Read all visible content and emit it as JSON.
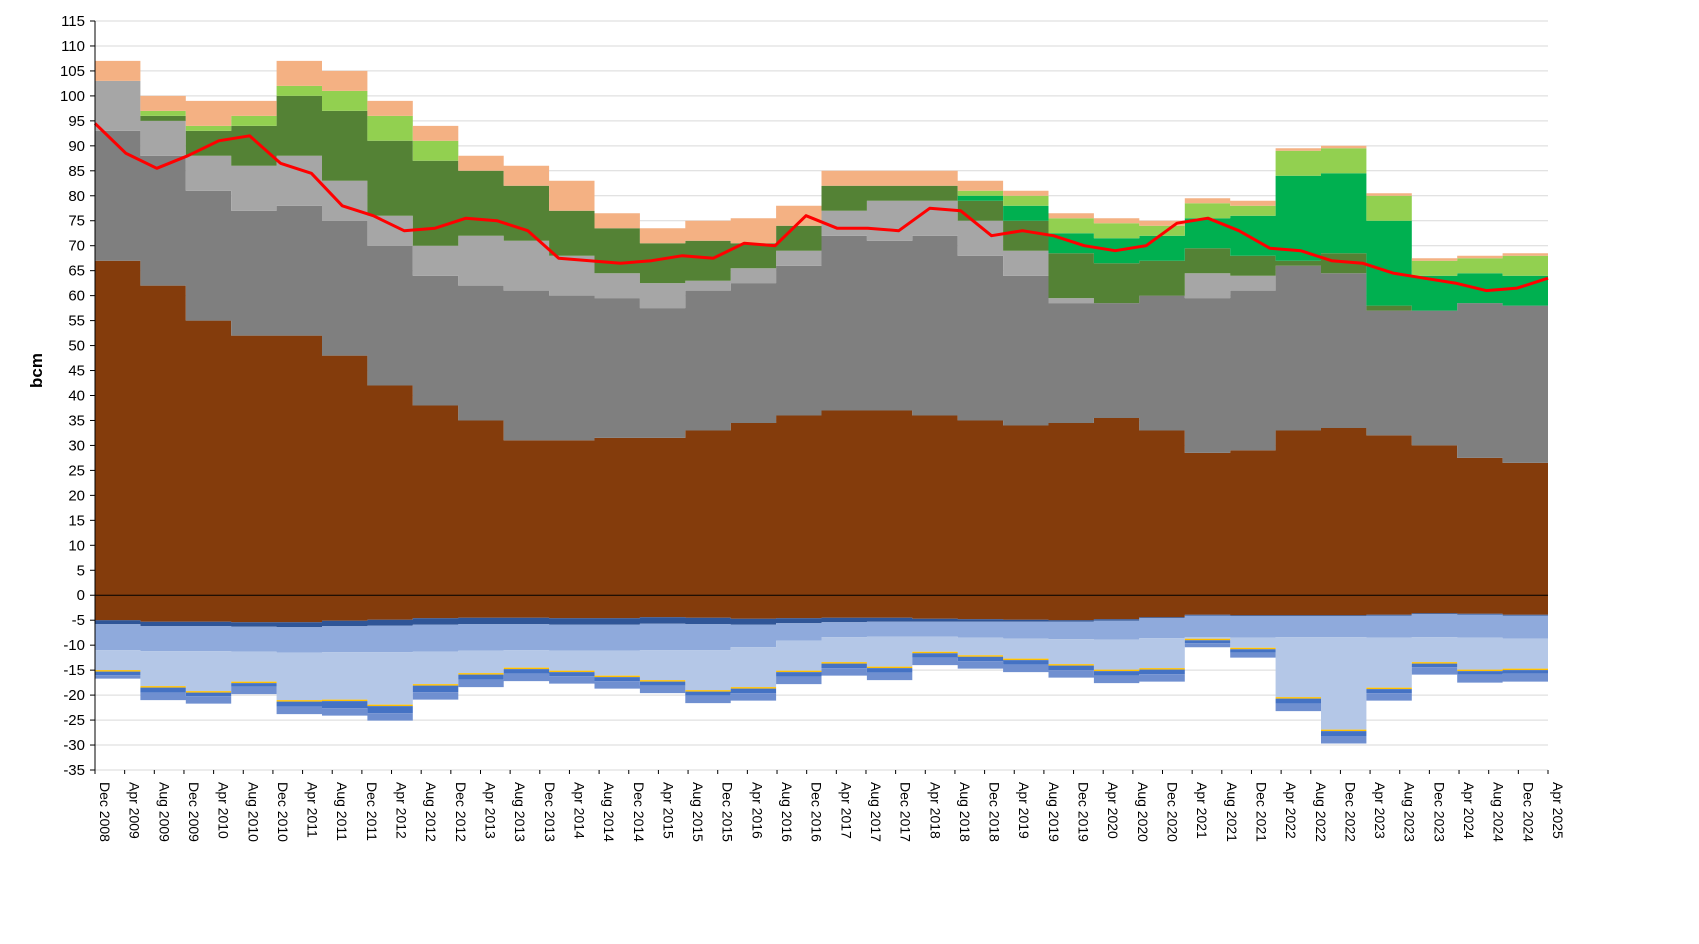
{
  "chart_data": {
    "type": "area",
    "stacked": true,
    "ylabel": "bcm",
    "xlabel": "",
    "ylim": [
      -35,
      115
    ],
    "y_ticks": [
      115,
      110,
      105,
      100,
      95,
      90,
      85,
      80,
      75,
      70,
      65,
      60,
      55,
      50,
      45,
      40,
      35,
      30,
      25,
      20,
      15,
      10,
      5,
      0,
      -5,
      -10,
      -15,
      -20,
      -25,
      -30,
      -35
    ],
    "x_ticks": [
      "Dec 2008",
      "Apr 2009",
      "Aug 2009",
      "Dec 2009",
      "Apr 2010",
      "Aug 2010",
      "Dec 2010",
      "Apr 2011",
      "Aug 2011",
      "Dec 2011",
      "Apr 2012",
      "Aug 2012",
      "Dec 2012",
      "Apr 2013",
      "Aug 2013",
      "Dec 2013",
      "Apr 2014",
      "Aug 2014",
      "Dec 2014",
      "Apr 2015",
      "Aug 2015",
      "Dec 2015",
      "Apr 2016",
      "Aug 2016",
      "Dec 2016",
      "Apr 2017",
      "Aug 2017",
      "Dec 2017",
      "Apr 2018",
      "Aug 2018",
      "Dec 2018",
      "Apr 2019",
      "Aug 2019",
      "Dec 2019",
      "Apr 2020",
      "Aug 2020",
      "Dec 2020",
      "Apr 2021",
      "Aug 2021",
      "Dec 2021",
      "Apr 2022",
      "Aug 2022",
      "Dec 2022",
      "Apr 2023",
      "Aug 2023",
      "Dec 2023",
      "Apr 2024",
      "Aug 2024",
      "Dec 2024",
      "Apr 2025"
    ],
    "grid": true,
    "legend": "none",
    "positive_series": [
      {
        "color": "#843C0C",
        "values": [
          67,
          62,
          55,
          52,
          52,
          48,
          42,
          38,
          35,
          31,
          31,
          31.5,
          31.5,
          33,
          34.5,
          36,
          37,
          37,
          36,
          35,
          34,
          34.5,
          35.5,
          33,
          28.5,
          29,
          33,
          33.5,
          32,
          30,
          27.5,
          26.5
        ]
      },
      {
        "color": "#7F7F7F",
        "values": [
          26,
          26,
          26,
          25,
          26,
          27,
          28,
          26,
          27,
          30,
          29,
          28,
          26,
          28,
          28,
          30,
          35,
          34,
          36,
          33,
          30,
          24,
          23,
          27,
          31,
          32,
          33,
          31,
          25,
          27,
          31,
          31.5
        ]
      },
      {
        "color": "#A6A6A6",
        "values": [
          10,
          7,
          7,
          9,
          10,
          8,
          6,
          6,
          10,
          10,
          8,
          5,
          5,
          2,
          3,
          3,
          5,
          8,
          7,
          7,
          5,
          1,
          0,
          0,
          5,
          3,
          0,
          0,
          0,
          0,
          0,
          0
        ]
      },
      {
        "color": "#548235",
        "values": [
          0,
          1,
          5,
          8,
          12,
          14,
          15,
          17,
          13,
          11,
          9,
          9,
          8,
          8,
          5,
          5,
          5,
          3,
          3,
          4,
          6,
          9,
          8,
          7,
          5,
          4,
          1,
          4,
          1,
          0,
          0,
          0
        ]
      },
      {
        "color": "#00B050",
        "values": [
          0,
          0,
          0,
          0,
          0,
          0,
          0,
          0,
          0,
          0,
          0,
          0,
          0,
          0,
          0,
          0,
          0,
          0,
          0,
          1,
          3,
          4,
          5,
          5,
          6,
          8,
          17,
          16,
          17,
          7,
          6,
          6
        ]
      },
      {
        "color": "#92D050",
        "values": [
          0,
          1,
          1,
          2,
          2,
          4,
          5,
          4,
          0,
          0,
          0,
          0,
          0,
          0,
          0,
          0,
          0,
          0,
          0,
          1,
          2,
          3,
          3,
          2,
          3,
          2,
          5,
          5,
          5,
          3,
          3,
          4
        ]
      },
      {
        "color": "#F4B183",
        "values": [
          4,
          3,
          5,
          3,
          5,
          4,
          3,
          3,
          3,
          4,
          6,
          3,
          3,
          4,
          5,
          4,
          3,
          3,
          3,
          2,
          1,
          1,
          1,
          1,
          1,
          1,
          0.5,
          0.5,
          0.5,
          0.5,
          0.5,
          0.5
        ]
      }
    ],
    "negative_series": [
      {
        "color": "#843C0C",
        "values": [
          -5,
          -5.3,
          -5.3,
          -5.4,
          -5.4,
          -5.1,
          -4.9,
          -4.6,
          -4.5,
          -4.5,
          -4.6,
          -4.6,
          -4.4,
          -4.5,
          -4.7,
          -4.6,
          -4.5,
          -4.5,
          -4.7,
          -4.8,
          -4.9,
          -5,
          -4.8,
          -4.4,
          -3.9,
          -4,
          -4,
          -4,
          -3.9,
          -3.6,
          -3.7,
          -3.9
        ]
      },
      {
        "color": "#2F5597",
        "values": [
          -0.8,
          -0.9,
          -0.9,
          -0.9,
          -1,
          -1.1,
          -1.2,
          -1.3,
          -1.3,
          -1.3,
          -1.3,
          -1.3,
          -1.3,
          -1.3,
          -1.2,
          -1,
          -0.9,
          -0.8,
          -0.6,
          -0.5,
          -0.4,
          -0.3,
          -0.3,
          -0.2,
          -0.2,
          -0.2,
          -0.2,
          -0.2,
          -0.2,
          -0.2,
          -0.2,
          -0.2
        ]
      },
      {
        "color": "#8FAADC",
        "values": [
          -5.2,
          -5,
          -5,
          -5,
          -5.1,
          -5.2,
          -5.3,
          -5.4,
          -5.3,
          -5.2,
          -5.2,
          -5.2,
          -5.3,
          -5.2,
          -4.5,
          -3.5,
          -3,
          -3,
          -3,
          -3.2,
          -3.4,
          -3.5,
          -3.8,
          -4,
          -4.3,
          -4.3,
          -4.2,
          -4.2,
          -4.4,
          -4.6,
          -4.6,
          -4.6
        ]
      },
      {
        "color": "#B4C7E7",
        "values": [
          -4,
          -7,
          -8,
          -6,
          -9.5,
          -9.5,
          -10.5,
          -6.5,
          -4.5,
          -3.5,
          -4,
          -5,
          -6,
          -8,
          -8,
          -6,
          -5,
          -6,
          -3,
          -3.5,
          -4,
          -5,
          -6,
          -6,
          -0.3,
          -2,
          -12,
          -18.5,
          -10,
          -5,
          -6.4,
          -6
        ]
      },
      {
        "color": "#FFC000",
        "values": [
          -0.3,
          -0.3,
          -0.3,
          -0.3,
          -0.3,
          -0.3,
          -0.3,
          -0.3,
          -0.3,
          -0.3,
          -0.3,
          -0.3,
          -0.3,
          -0.3,
          -0.3,
          -0.3,
          -0.3,
          -0.3,
          -0.3,
          -0.3,
          -0.3,
          -0.3,
          -0.3,
          -0.3,
          -0.3,
          -0.3,
          -0.3,
          -0.3,
          -0.3,
          -0.3,
          -0.3,
          -0.3
        ]
      },
      {
        "color": "#4472C4",
        "values": [
          -0.7,
          -1,
          -0.7,
          -0.7,
          -1,
          -1.4,
          -1.4,
          -1.3,
          -1,
          -0.9,
          -0.8,
          -0.8,
          -0.8,
          -0.8,
          -0.9,
          -0.9,
          -0.9,
          -0.9,
          -0.9,
          -0.9,
          -0.9,
          -0.9,
          -0.9,
          -0.9,
          -0.6,
          -0.7,
          -1,
          -1,
          -0.8,
          -0.7,
          -0.7,
          -0.7
        ]
      },
      {
        "color": "#6F8FD0",
        "values": [
          -0.7,
          -1.5,
          -1.5,
          -1.5,
          -1.5,
          -1.5,
          -1.5,
          -1.5,
          -1.5,
          -1.5,
          -1.5,
          -1.5,
          -1.5,
          -1.5,
          -1.5,
          -1.5,
          -1.5,
          -1.5,
          -1.5,
          -1.5,
          -1.5,
          -1.5,
          -1.5,
          -1.5,
          -0.8,
          -1,
          -1.5,
          -1.5,
          -1.5,
          -1.5,
          -1.6,
          -1.6
        ]
      }
    ],
    "line_series": [
      {
        "color": "#FF0000",
        "values": [
          94.5,
          88.5,
          85.5,
          88,
          91,
          92,
          86.5,
          84.5,
          78,
          76,
          73,
          73.5,
          75.5,
          75,
          73,
          67.5,
          67,
          66.5,
          67,
          68,
          67.5,
          70.5,
          70,
          76,
          73.5,
          73.5,
          73,
          77.5,
          77,
          72,
          73,
          72,
          70,
          69,
          70,
          74.5,
          75.5,
          73,
          69.5,
          69,
          67,
          66.5,
          64.5,
          63.5,
          62.5,
          61,
          61.5,
          63.5
        ]
      }
    ]
  }
}
